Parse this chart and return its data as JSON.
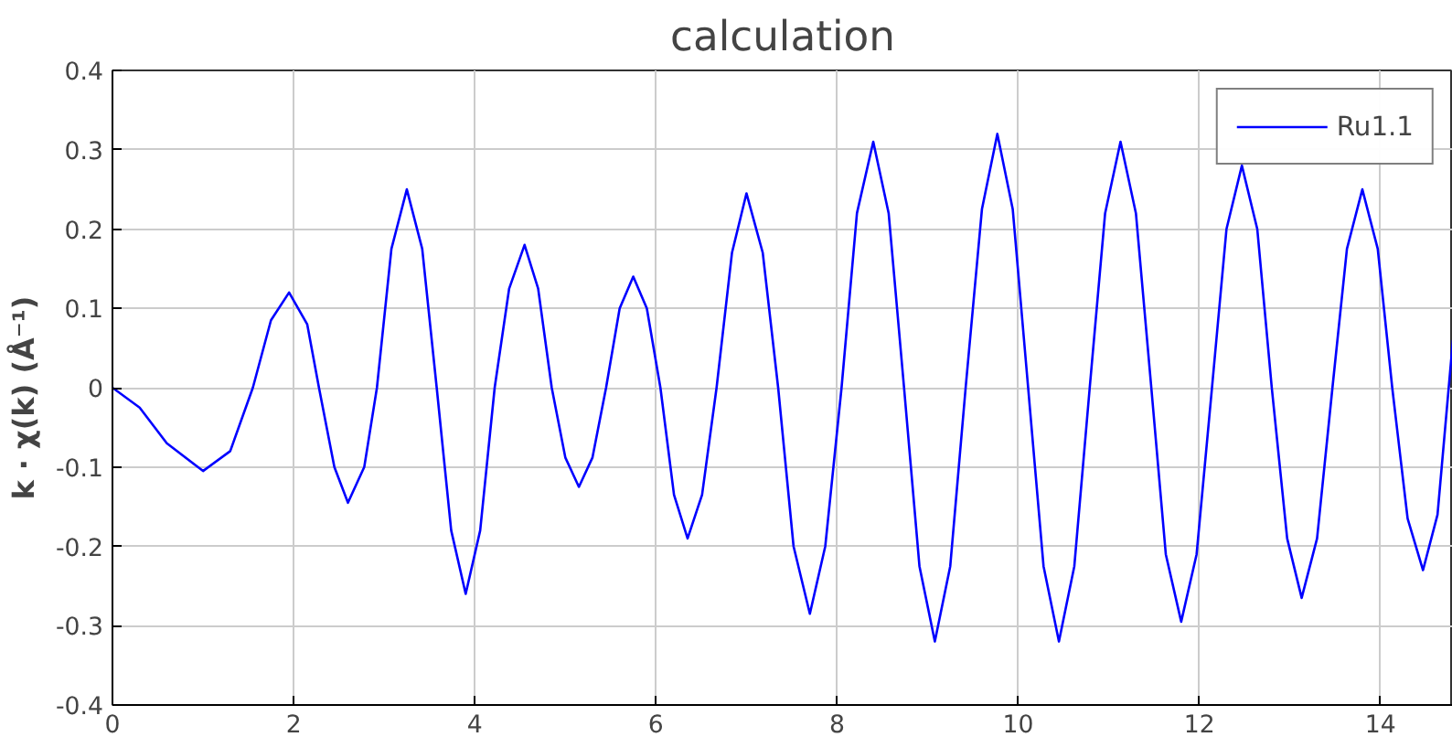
{
  "chart_data": {
    "type": "line",
    "title": "calculation",
    "ylabel": "k · χ(k)   (Å⁻¹)",
    "x": [
      0,
      0.3,
      0.6,
      1.0,
      1.3,
      1.55,
      1.75,
      1.95,
      2.15,
      2.28,
      2.45,
      2.6,
      2.78,
      2.92,
      3.08,
      3.25,
      3.42,
      3.58,
      3.74,
      3.9,
      4.06,
      4.22,
      4.38,
      4.55,
      4.7,
      4.85,
      5.0,
      5.15,
      5.3,
      5.45,
      5.6,
      5.75,
      5.9,
      6.05,
      6.2,
      6.35,
      6.51,
      6.67,
      6.84,
      7.0,
      7.18,
      7.35,
      7.52,
      7.7,
      7.87,
      8.05,
      8.22,
      8.4,
      8.57,
      8.74,
      8.91,
      9.08,
      9.25,
      9.42,
      9.6,
      9.77,
      9.94,
      10.11,
      10.28,
      10.45,
      10.62,
      10.79,
      10.96,
      11.13,
      11.3,
      11.47,
      11.63,
      11.8,
      11.97,
      12.14,
      12.3,
      12.47,
      12.64,
      12.8,
      12.97,
      13.13,
      13.3,
      13.47,
      13.63,
      13.8,
      13.97,
      14.13,
      14.3,
      14.47,
      14.63,
      14.8
    ],
    "series": [
      {
        "name": "Ru1.1",
        "color": "#0000ff",
        "values": [
          0,
          -0.025,
          -0.07,
          -0.105,
          -0.08,
          0,
          0.085,
          0.12,
          0.08,
          0,
          -0.1,
          -0.145,
          -0.1,
          0,
          0.175,
          0.25,
          0.175,
          0,
          -0.18,
          -0.26,
          -0.18,
          0,
          0.125,
          0.18,
          0.125,
          0,
          -0.088,
          -0.125,
          -0.088,
          0,
          0.1,
          0.14,
          0.1,
          0,
          -0.135,
          -0.19,
          -0.135,
          0,
          0.17,
          0.245,
          0.17,
          0,
          -0.2,
          -0.285,
          -0.2,
          0,
          0.22,
          0.31,
          0.22,
          0,
          -0.225,
          -0.32,
          -0.225,
          0,
          0.225,
          0.32,
          0.225,
          0,
          -0.225,
          -0.32,
          -0.225,
          0,
          0.22,
          0.31,
          0.22,
          0,
          -0.21,
          -0.295,
          -0.21,
          0,
          0.2,
          0.28,
          0.2,
          0,
          -0.19,
          -0.265,
          -0.19,
          0,
          0.175,
          0.25,
          0.175,
          0,
          -0.165,
          -0.23,
          -0.16,
          0.06
        ]
      }
    ],
    "xlim": [
      0,
      14.8
    ],
    "ylim": [
      -0.4,
      0.4
    ],
    "xticks": [
      0,
      2,
      4,
      6,
      8,
      10,
      12,
      14
    ],
    "yticks": [
      -0.4,
      -0.3,
      -0.2,
      -0.1,
      0,
      0.1,
      0.2,
      0.3,
      0.4
    ],
    "grid": true,
    "legend": "top right",
    "line_style": "solid"
  }
}
